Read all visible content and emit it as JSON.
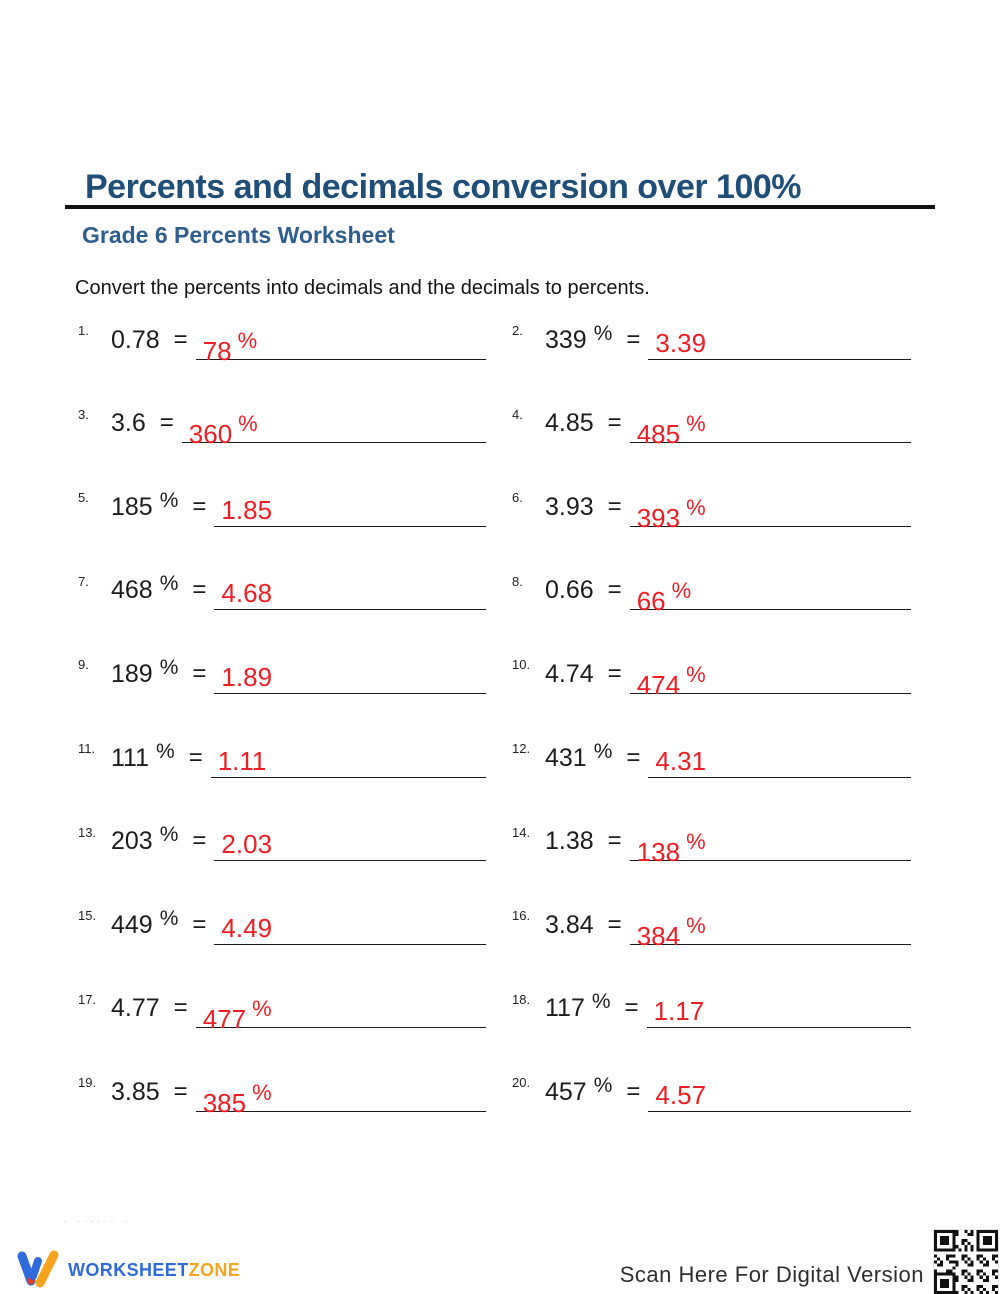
{
  "header": {
    "title": "Percents and decimals conversion over 100%",
    "subtitle": "Grade 6 Percents Worksheet",
    "instruction": "Convert the percents into decimals and the decimals to percents."
  },
  "symbols": {
    "percent": "%",
    "equals": "="
  },
  "problems": [
    {
      "number": "1.",
      "question": "0.78",
      "question_is_percent": false,
      "answer": "78",
      "answer_is_percent": true
    },
    {
      "number": "2.",
      "question": "339",
      "question_is_percent": true,
      "answer": "3.39",
      "answer_is_percent": false
    },
    {
      "number": "3.",
      "question": "3.6",
      "question_is_percent": false,
      "answer": "360",
      "answer_is_percent": true
    },
    {
      "number": "4.",
      "question": "4.85",
      "question_is_percent": false,
      "answer": "485",
      "answer_is_percent": true
    },
    {
      "number": "5.",
      "question": "185",
      "question_is_percent": true,
      "answer": "1.85",
      "answer_is_percent": false
    },
    {
      "number": "6.",
      "question": "3.93",
      "question_is_percent": false,
      "answer": "393",
      "answer_is_percent": true
    },
    {
      "number": "7.",
      "question": "468",
      "question_is_percent": true,
      "answer": "4.68",
      "answer_is_percent": false
    },
    {
      "number": "8.",
      "question": "0.66",
      "question_is_percent": false,
      "answer": "66",
      "answer_is_percent": true
    },
    {
      "number": "9.",
      "question": "189",
      "question_is_percent": true,
      "answer": "1.89",
      "answer_is_percent": false
    },
    {
      "number": "10.",
      "question": "4.74",
      "question_is_percent": false,
      "answer": "474",
      "answer_is_percent": true
    },
    {
      "number": "11.",
      "question": "111",
      "question_is_percent": true,
      "answer": "1.11",
      "answer_is_percent": false
    },
    {
      "number": "12.",
      "question": "431",
      "question_is_percent": true,
      "answer": "4.31",
      "answer_is_percent": false
    },
    {
      "number": "13.",
      "question": "203",
      "question_is_percent": true,
      "answer": "2.03",
      "answer_is_percent": false
    },
    {
      "number": "14.",
      "question": "1.38",
      "question_is_percent": false,
      "answer": "138",
      "answer_is_percent": true
    },
    {
      "number": "15.",
      "question": "449",
      "question_is_percent": true,
      "answer": "4.49",
      "answer_is_percent": false
    },
    {
      "number": "16.",
      "question": "3.84",
      "question_is_percent": false,
      "answer": "384",
      "answer_is_percent": true
    },
    {
      "number": "17.",
      "question": "4.77",
      "question_is_percent": false,
      "answer": "477",
      "answer_is_percent": true
    },
    {
      "number": "18.",
      "question": "117",
      "question_is_percent": true,
      "answer": "1.17",
      "answer_is_percent": false
    },
    {
      "number": "19.",
      "question": "3.85",
      "question_is_percent": false,
      "answer": "385",
      "answer_is_percent": true
    },
    {
      "number": "20.",
      "question": "457",
      "question_is_percent": true,
      "answer": "4.57",
      "answer_is_percent": false
    }
  ],
  "footer": {
    "fine_print": "- ······ -",
    "logo_text_1": "WORKSHEET",
    "logo_text_2": "ZONE",
    "scan_text": "Scan Here For Digital Version"
  },
  "colors": {
    "title_blue": "#1F4E79",
    "subtitle_blue": "#2E5E8E",
    "answer_red": "#ED1F24",
    "logo_blue": "#2F6BDB",
    "logo_orange": "#F6A41D",
    "logo_red": "#E23B2E"
  }
}
